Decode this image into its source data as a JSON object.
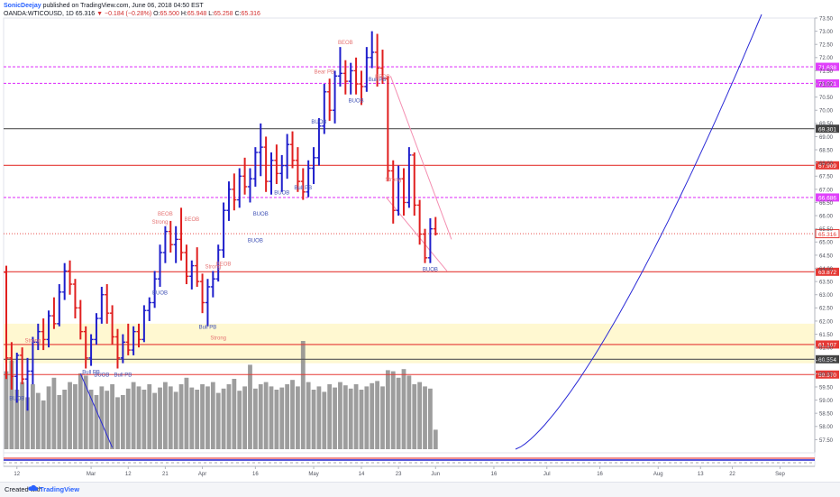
{
  "header": {
    "author": "SonicDeejay",
    "published": "published on TradingView.com, June 06, 2018 04:50 EST",
    "symbol": "OANDA:WTICOUSD, 1D",
    "last": "65.316",
    "change": "▼ −0.184 (−0.28%)",
    "o_label": "O:",
    "o": "65.500",
    "h_label": "H:",
    "h": "65.948",
    "l_label": "L:",
    "l": "65.258",
    "c_label": "C:",
    "c": "65.316"
  },
  "footer": {
    "created_with": "Created with",
    "brand": "TradingView"
  },
  "colors": {
    "up": "#1f1fcc",
    "down": "#e01f1f",
    "volume": "#8c8c8c",
    "magenta": "#e040fb",
    "red_level": "#e53935",
    "black_level": "#555555",
    "zone": "#fff8d1",
    "trend": "#f48fb1",
    "curve": "#2a2ad6"
  },
  "chart_data": {
    "type": "ohlc",
    "title": "OANDA:WTICOUSD, 1D",
    "ylim": [
      57.0,
      73.5
    ],
    "y_ticks": [
      "57.50",
      "58.00",
      "58.50",
      "59.00",
      "59.50",
      "60.00",
      "60.50",
      "61.00",
      "61.50",
      "62.00",
      "62.50",
      "63.00",
      "63.50",
      "64.00",
      "64.50",
      "65.00",
      "65.50",
      "66.00",
      "66.50",
      "67.00",
      "67.50",
      "68.00",
      "68.50",
      "69.00",
      "69.50",
      "70.00",
      "70.50",
      "71.00",
      "71.50",
      "72.00",
      "72.50",
      "73.00",
      "73.50"
    ],
    "x_ticks": [
      {
        "label": "12",
        "bar": 2
      },
      {
        "label": "Mar",
        "bar": 16
      },
      {
        "label": "12",
        "bar": 23
      },
      {
        "label": "21",
        "bar": 30
      },
      {
        "label": "Apr",
        "bar": 37
      },
      {
        "label": "16",
        "bar": 47
      },
      {
        "label": "May",
        "bar": 58
      },
      {
        "label": "14",
        "bar": 67
      },
      {
        "label": "23",
        "bar": 74
      },
      {
        "label": "Jun",
        "bar": 81
      },
      {
        "label": "16",
        "bar": 92
      },
      {
        "label": "Jul",
        "bar": 102
      },
      {
        "label": "16",
        "bar": 112
      },
      {
        "label": "Aug",
        "bar": 123
      },
      {
        "label": "13",
        "bar": 131
      },
      {
        "label": "22",
        "bar": 137
      },
      {
        "label": "Sep",
        "bar": 146
      }
    ],
    "price_levels": [
      {
        "label": "71.638",
        "value": 71.65,
        "style": "magenta"
      },
      {
        "label": "71.021",
        "value": 71.02,
        "style": "magenta"
      },
      {
        "label": "69.301",
        "value": 69.3,
        "style": "black"
      },
      {
        "label": "67.909",
        "value": 67.91,
        "style": "red"
      },
      {
        "label": "66.686",
        "value": 66.69,
        "style": "magenta"
      },
      {
        "label": "65.316",
        "value": 65.316,
        "style": "last"
      },
      {
        "label": "63.872",
        "value": 63.87,
        "style": "red"
      },
      {
        "label": "61.107",
        "value": 61.11,
        "style": "red"
      },
      {
        "label": "60.554",
        "value": 60.55,
        "style": "black"
      },
      {
        "label": "59.970",
        "value": 59.97,
        "style": "red"
      }
    ],
    "zone": [
      60.4,
      61.9
    ],
    "bars": [
      [
        63.85,
        64.1,
        59.8,
        60.6
      ],
      [
        60.6,
        61.2,
        59.4,
        59.9
      ],
      [
        59.9,
        60.8,
        58.9,
        60.7
      ],
      [
        60.7,
        61.0,
        59.6,
        59.8
      ],
      [
        59.8,
        60.6,
        58.6,
        60.1
      ],
      [
        60.1,
        61.4,
        59.6,
        61.2
      ],
      [
        61.2,
        61.9,
        60.9,
        61.6
      ],
      [
        61.6,
        62.1,
        60.9,
        61.3
      ],
      [
        61.3,
        62.4,
        61.0,
        62.2
      ],
      [
        62.2,
        62.9,
        61.7,
        61.9
      ],
      [
        61.9,
        63.4,
        61.8,
        63.1
      ],
      [
        63.1,
        64.2,
        62.8,
        63.9
      ],
      [
        63.9,
        64.3,
        63.0,
        63.4
      ],
      [
        63.4,
        63.6,
        62.1,
        62.5
      ],
      [
        62.5,
        62.8,
        61.3,
        61.6
      ],
      [
        61.6,
        61.8,
        60.2,
        60.6
      ],
      [
        60.6,
        61.5,
        60.3,
        61.3
      ],
      [
        61.3,
        62.3,
        61.1,
        62.1
      ],
      [
        62.1,
        63.3,
        61.9,
        63.0
      ],
      [
        63.0,
        63.4,
        61.9,
        62.3
      ],
      [
        62.3,
        62.6,
        61.1,
        61.4
      ],
      [
        61.4,
        61.7,
        60.2,
        60.6
      ],
      [
        60.6,
        61.5,
        60.4,
        61.2
      ],
      [
        61.2,
        61.9,
        60.7,
        60.9
      ],
      [
        60.9,
        61.8,
        60.7,
        61.6
      ],
      [
        61.6,
        61.9,
        61.0,
        61.3
      ],
      [
        61.3,
        62.6,
        61.2,
        62.4
      ],
      [
        62.4,
        62.9,
        62.0,
        62.7
      ],
      [
        62.7,
        63.9,
        62.5,
        63.6
      ],
      [
        63.6,
        64.9,
        63.3,
        64.6
      ],
      [
        64.6,
        65.6,
        64.2,
        65.4
      ],
      [
        65.4,
        65.8,
        64.6,
        64.9
      ],
      [
        64.9,
        65.6,
        64.2,
        65.1
      ],
      [
        65.1,
        66.3,
        64.3,
        64.6
      ],
      [
        64.6,
        64.9,
        63.4,
        63.7
      ],
      [
        63.7,
        64.3,
        63.2,
        64.1
      ],
      [
        64.1,
        64.8,
        63.3,
        63.5
      ],
      [
        63.5,
        63.8,
        62.3,
        62.7
      ],
      [
        62.7,
        63.6,
        61.8,
        63.3
      ],
      [
        63.3,
        63.9,
        62.9,
        63.6
      ],
      [
        63.6,
        64.9,
        63.5,
        64.7
      ],
      [
        64.7,
        66.5,
        64.4,
        66.2
      ],
      [
        66.2,
        67.3,
        65.8,
        67.0
      ],
      [
        67.0,
        67.6,
        66.2,
        66.6
      ],
      [
        66.6,
        67.8,
        66.3,
        67.5
      ],
      [
        67.5,
        68.2,
        66.8,
        67.1
      ],
      [
        67.1,
        67.8,
        66.5,
        67.4
      ],
      [
        67.4,
        68.6,
        67.1,
        68.4
      ],
      [
        68.4,
        69.5,
        67.5,
        68.6
      ],
      [
        68.6,
        69.0,
        66.9,
        67.3
      ],
      [
        67.3,
        68.4,
        66.8,
        68.1
      ],
      [
        68.1,
        68.7,
        67.2,
        67.6
      ],
      [
        67.6,
        68.3,
        66.9,
        67.9
      ],
      [
        67.9,
        69.1,
        67.4,
        68.7
      ],
      [
        68.7,
        69.2,
        67.8,
        68.1
      ],
      [
        68.1,
        68.6,
        66.9,
        67.3
      ],
      [
        67.3,
        67.8,
        66.6,
        66.9
      ],
      [
        66.9,
        68.1,
        66.7,
        67.8
      ],
      [
        67.8,
        68.6,
        67.2,
        68.2
      ],
      [
        68.2,
        69.7,
        67.9,
        69.4
      ],
      [
        69.4,
        71.0,
        69.1,
        70.7
      ],
      [
        70.7,
        71.2,
        69.6,
        70.0
      ],
      [
        70.0,
        71.5,
        69.5,
        71.3
      ],
      [
        71.3,
        72.4,
        70.9,
        71.4
      ],
      [
        71.4,
        71.9,
        70.6,
        71.1
      ],
      [
        71.1,
        71.8,
        70.6,
        71.5
      ],
      [
        71.5,
        72.0,
        70.6,
        71.0
      ],
      [
        71.0,
        71.5,
        70.2,
        70.9
      ],
      [
        70.9,
        72.4,
        70.7,
        72.0
      ],
      [
        72.0,
        73.0,
        71.6,
        72.2
      ],
      [
        72.2,
        72.9,
        70.9,
        71.6
      ],
      [
        71.6,
        72.3,
        71.0,
        71.2
      ],
      [
        71.2,
        71.3,
        67.3,
        67.7
      ],
      [
        67.7,
        68.1,
        65.7,
        66.2
      ],
      [
        66.2,
        67.9,
        66.0,
        67.4
      ],
      [
        67.4,
        67.8,
        66.0,
        66.5
      ],
      [
        66.5,
        68.6,
        66.3,
        68.3
      ],
      [
        68.3,
        68.4,
        66.0,
        66.4
      ],
      [
        66.4,
        66.6,
        64.9,
        65.3
      ],
      [
        65.3,
        65.5,
        64.2,
        64.4
      ],
      [
        64.4,
        65.9,
        64.2,
        65.5
      ],
      [
        65.5,
        65.95,
        65.25,
        65.316
      ]
    ],
    "volume_ranges": [
      1,
      0.88
    ],
    "volumes": [
      0.72,
      0.82,
      0.55,
      0.62,
      0.48,
      0.6,
      0.52,
      0.45,
      0.58,
      0.66,
      0.5,
      0.55,
      0.62,
      0.6,
      0.7,
      0.68,
      0.55,
      0.5,
      0.58,
      0.54,
      0.6,
      0.48,
      0.5,
      0.56,
      0.62,
      0.58,
      0.55,
      0.6,
      0.52,
      0.57,
      0.62,
      0.58,
      0.53,
      0.6,
      0.66,
      0.57,
      0.55,
      0.6,
      0.58,
      0.62,
      0.52,
      0.56,
      0.6,
      0.65,
      0.54,
      0.58,
      0.78,
      0.56,
      0.6,
      0.62,
      0.58,
      0.55,
      0.57,
      0.6,
      0.64,
      0.58,
      1.0,
      0.62,
      0.55,
      0.58,
      0.53,
      0.6,
      0.57,
      0.62,
      0.59,
      0.56,
      0.6,
      0.55,
      0.58,
      0.61,
      0.63,
      0.58,
      0.73,
      0.72,
      0.66,
      0.74,
      0.68,
      0.6,
      0.62,
      0.58,
      0.56,
      0.18
    ]
  },
  "annotations": [
    {
      "bar": 2,
      "value": 59.0,
      "label": "BUOB",
      "color": "up"
    },
    {
      "bar": 16,
      "value": 60.0,
      "label": "Bull PB",
      "color": "up"
    },
    {
      "bar": 18,
      "value": 59.9,
      "label": "BUOB",
      "color": "up"
    },
    {
      "bar": 22,
      "value": 59.9,
      "label": "Bull PB",
      "color": "up"
    },
    {
      "bar": 5,
      "value": 61.2,
      "label": "Strong",
      "color": "down"
    },
    {
      "bar": 30,
      "value": 66.0,
      "label": "BEOB",
      "color": "down"
    },
    {
      "bar": 29,
      "value": 65.7,
      "label": "Strong",
      "color": "down"
    },
    {
      "bar": 35,
      "value": 65.8,
      "label": "BEOB",
      "color": "down"
    },
    {
      "bar": 29,
      "value": 63.0,
      "label": "BUOB",
      "color": "up"
    },
    {
      "bar": 39,
      "value": 64.0,
      "label": "Strong",
      "color": "down"
    },
    {
      "bar": 41,
      "value": 64.1,
      "label": "BEOB",
      "color": "down"
    },
    {
      "bar": 38,
      "value": 61.7,
      "label": "Bull PB",
      "color": "up"
    },
    {
      "bar": 40,
      "value": 61.3,
      "label": "Strong",
      "color": "down"
    },
    {
      "bar": 47,
      "value": 65.0,
      "label": "BUOB",
      "color": "up"
    },
    {
      "bar": 48,
      "value": 66.0,
      "label": "BUOB",
      "color": "up"
    },
    {
      "bar": 52,
      "value": 66.8,
      "label": "BUOB",
      "color": "up"
    },
    {
      "bar": 56,
      "value": 67.0,
      "label": "Bull PB",
      "color": "up"
    },
    {
      "bar": 59,
      "value": 69.5,
      "label": "BUOB",
      "color": "up"
    },
    {
      "bar": 60,
      "value": 71.4,
      "label": "Bear PB",
      "color": "down"
    },
    {
      "bar": 64,
      "value": 72.5,
      "label": "BEOB",
      "color": "down"
    },
    {
      "bar": 66,
      "value": 70.3,
      "label": "BUOB",
      "color": "up"
    },
    {
      "bar": 70,
      "value": 71.1,
      "label": "Bull PB",
      "color": "up"
    },
    {
      "bar": 71,
      "value": 71.2,
      "label": "BEOB",
      "color": "down"
    },
    {
      "bar": 73,
      "value": 67.3,
      "label": "Strong",
      "color": "down"
    },
    {
      "bar": 80,
      "value": 63.9,
      "label": "BUOB",
      "color": "up"
    }
  ]
}
